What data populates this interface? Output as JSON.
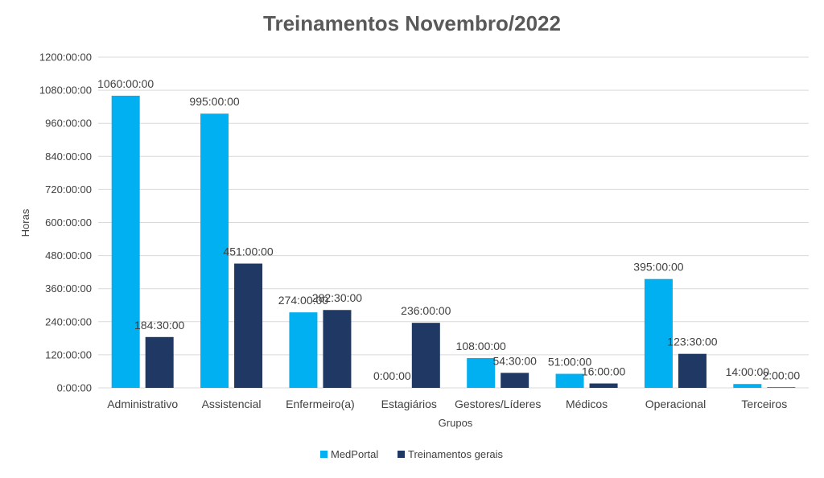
{
  "chart_data": {
    "type": "bar",
    "title": "Treinamentos Novembro/2022",
    "xlabel": "Grupos",
    "ylabel": "Horas",
    "ylim": [
      0,
      1200
    ],
    "yticks": [
      0,
      120,
      240,
      360,
      480,
      600,
      720,
      840,
      960,
      1080,
      1200
    ],
    "ytick_labels": [
      "0:00:00",
      "120:00:00",
      "240:00:00",
      "360:00:00",
      "480:00:00",
      "600:00:00",
      "720:00:00",
      "840:00:00",
      "960:00:00",
      "1080:00:00",
      "1200:00:00"
    ],
    "grid": true,
    "legend_position": "bottom",
    "categories": [
      "Administrativo",
      "Assistencial",
      "Enfermeiro(a)",
      "Estagiários",
      "Gestores/Líderes",
      "Médicos",
      "Operacional",
      "Terceiros"
    ],
    "series": [
      {
        "name": "MedPortal",
        "color": "#00B0F0",
        "values": [
          1060,
          995,
          274,
          0,
          108,
          51,
          395,
          14
        ],
        "labels": [
          "1060:00:00",
          "995:00:00",
          "274:00:00",
          "0:00:00",
          "108:00:00",
          "51:00:00",
          "395:00:00",
          "14:00:00"
        ]
      },
      {
        "name": "Treinamentos gerais",
        "color": "#203864",
        "values": [
          184.5,
          451,
          282.5,
          236,
          54.5,
          16,
          123.5,
          2
        ],
        "labels": [
          "184:30:00",
          "451:00:00",
          "282:30:00",
          "236:00:00",
          "54:30:00",
          "16:00:00",
          "123:30:00",
          "2:00:00"
        ]
      }
    ]
  }
}
